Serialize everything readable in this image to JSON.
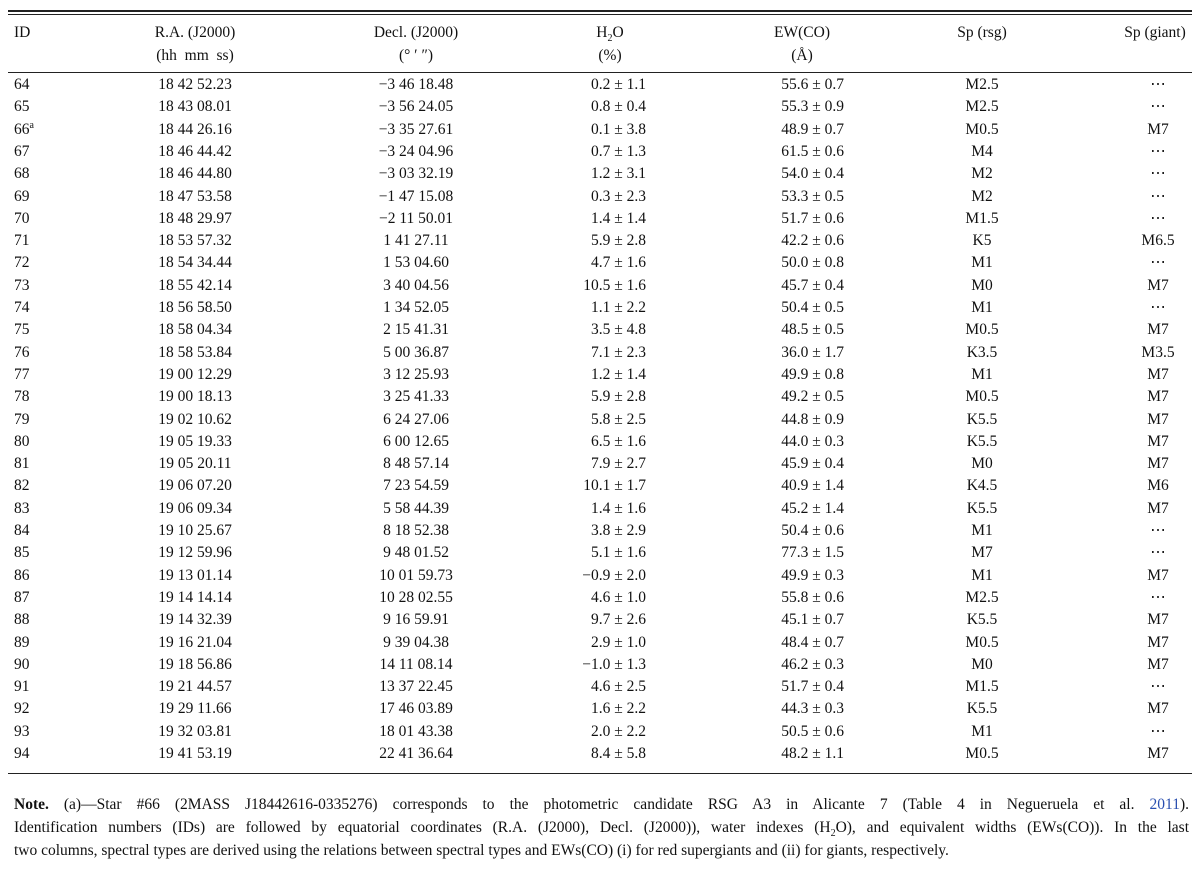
{
  "table": {
    "header": [
      [
        "ID"
      ],
      [
        "R.A. (J2000)",
        "(hh  mm  ss)"
      ],
      [
        "Decl. (J2000)",
        "(° ′ ″)"
      ],
      [
        {
          "pre": "H",
          "sub": "2",
          "post": "O"
        },
        "(%)"
      ],
      [
        "EW(CO)",
        "(Å)"
      ],
      [
        "Sp (rsg)"
      ],
      [
        "Sp (giant)"
      ]
    ],
    "rows": [
      [
        "64",
        "18 42 52.23",
        "−3 46 18.48",
        "0.2 ± 1.1",
        "55.6 ± 0.7",
        "M2.5",
        "⋯"
      ],
      [
        "65",
        "18 43 08.01",
        "−3 56 24.05",
        "0.8 ± 0.4",
        "55.3 ± 0.9",
        "M2.5",
        "⋯"
      ],
      [
        {
          "text": "66",
          "sup": "a"
        },
        "18 44 26.16",
        "−3 35 27.61",
        "0.1 ± 3.8",
        "48.9 ± 0.7",
        "M0.5",
        "M7"
      ],
      [
        "67",
        "18 46 44.42",
        "−3 24 04.96",
        "0.7 ± 1.3",
        "61.5 ± 0.6",
        "M4",
        "⋯"
      ],
      [
        "68",
        "18 46 44.80",
        "−3 03 32.19",
        "1.2 ± 3.1",
        "54.0 ± 0.4",
        "M2",
        "⋯"
      ],
      [
        "69",
        "18 47 53.58",
        "−1 47 15.08",
        "0.3 ± 2.3",
        "53.3 ± 0.5",
        "M2",
        "⋯"
      ],
      [
        "70",
        "18 48 29.97",
        "−2 11 50.01",
        "1.4 ± 1.4",
        "51.7 ± 0.6",
        "M1.5",
        "⋯"
      ],
      [
        "71",
        "18 53 57.32",
        "1 41 27.11",
        "5.9 ± 2.8",
        "42.2 ± 0.6",
        "K5",
        "M6.5"
      ],
      [
        "72",
        "18 54 34.44",
        "1 53 04.60",
        "4.7 ± 1.6",
        "50.0 ± 0.8",
        "M1",
        "⋯"
      ],
      [
        "73",
        "18 55 42.14",
        "3 40 04.56",
        "10.5 ± 1.6",
        "45.7 ± 0.4",
        "M0",
        "M7"
      ],
      [
        "74",
        "18 56 58.50",
        "1 34 52.05",
        "1.1 ± 2.2",
        "50.4 ± 0.5",
        "M1",
        "⋯"
      ],
      [
        "75",
        "18 58 04.34",
        "2 15 41.31",
        "3.5 ± 4.8",
        "48.5 ± 0.5",
        "M0.5",
        "M7"
      ],
      [
        "76",
        "18 58 53.84",
        "5 00 36.87",
        "7.1 ± 2.3",
        "36.0 ± 1.7",
        "K3.5",
        "M3.5"
      ],
      [
        "77",
        "19 00 12.29",
        "3 12 25.93",
        "1.2 ± 1.4",
        "49.9 ± 0.8",
        "M1",
        "M7"
      ],
      [
        "78",
        "19 00 18.13",
        "3 25 41.33",
        "5.9 ± 2.8",
        "49.2 ± 0.5",
        "M0.5",
        "M7"
      ],
      [
        "79",
        "19 02 10.62",
        "6 24 27.06",
        "5.8 ± 2.5",
        "44.8 ± 0.9",
        "K5.5",
        "M7"
      ],
      [
        "80",
        "19 05 19.33",
        "6 00 12.65",
        "6.5 ± 1.6",
        "44.0 ± 0.3",
        "K5.5",
        "M7"
      ],
      [
        "81",
        "19 05 20.11",
        "8 48 57.14",
        "7.9 ± 2.7",
        "45.9 ± 0.4",
        "M0",
        "M7"
      ],
      [
        "82",
        "19 06 07.20",
        "7 23 54.59",
        "10.1 ± 1.7",
        "40.9 ± 1.4",
        "K4.5",
        "M6"
      ],
      [
        "83",
        "19 06 09.34",
        "5 58 44.39",
        "1.4 ± 1.6",
        "45.2 ± 1.4",
        "K5.5",
        "M7"
      ],
      [
        "84",
        "19 10 25.67",
        "8 18 52.38",
        "3.8 ± 2.9",
        "50.4 ± 0.6",
        "M1",
        "⋯"
      ],
      [
        "85",
        "19 12 59.96",
        "9 48 01.52",
        "5.1 ± 1.6",
        "77.3 ± 1.5",
        "M7",
        "⋯"
      ],
      [
        "86",
        "19 13 01.14",
        "10 01 59.73",
        "−0.9 ± 2.0",
        "49.9 ± 0.3",
        "M1",
        "M7"
      ],
      [
        "87",
        "19 14 14.14",
        "10 28 02.55",
        "4.6 ± 1.0",
        "55.8 ± 0.6",
        "M2.5",
        "⋯"
      ],
      [
        "88",
        "19 14 32.39",
        "9 16 59.91",
        "9.7 ± 2.6",
        "45.1 ± 0.7",
        "K5.5",
        "M7"
      ],
      [
        "89",
        "19 16 21.04",
        "9 39 04.38",
        "2.9 ± 1.0",
        "48.4 ± 0.7",
        "M0.5",
        "M7"
      ],
      [
        "90",
        "19 18 56.86",
        "14 11 08.14",
        "−1.0 ± 1.3",
        "46.2 ± 0.3",
        "M0",
        "M7"
      ],
      [
        "91",
        "19 21 44.57",
        "13 37 22.45",
        "4.6 ± 2.5",
        "51.7 ± 0.4",
        "M1.5",
        "⋯"
      ],
      [
        "92",
        "19 29 11.66",
        "17 46 03.89",
        "1.6 ± 2.2",
        "44.3 ± 0.3",
        "K5.5",
        "M7"
      ],
      [
        "93",
        "19 32 03.81",
        "18 01 43.38",
        "2.0 ± 2.2",
        "50.5 ± 0.6",
        "M1",
        "⋯"
      ],
      [
        "94",
        "19 41 53.19",
        "22 41 36.64",
        "8.4 ± 5.8",
        "48.2 ± 1.1",
        "M0.5",
        "M7"
      ]
    ]
  },
  "note": {
    "label": "Note.",
    "lines": [
      [
        {
          "t": "(a)—Star #66 (2MASS J18442616-0335276) corresponds to the photometric candidate RSG A3 in Alicante 7 (Table 4 in Negueruela et al. "
        },
        {
          "link": "2011"
        },
        {
          "t": ")."
        }
      ],
      [
        {
          "t": "Identification numbers (IDs) are followed by equatorial coordinates (R.A. (J2000), Decl. (J2000)), water indexes (H"
        },
        {
          "sub": "2"
        },
        {
          "t": "O), and equivalent widths (EWs(CO)). In the last"
        }
      ],
      [
        {
          "t": "two columns, spectral types are derived using the relations between spectral types and EWs(CO) (i) for red supergiants and (ii) for giants, respectively."
        }
      ]
    ]
  }
}
